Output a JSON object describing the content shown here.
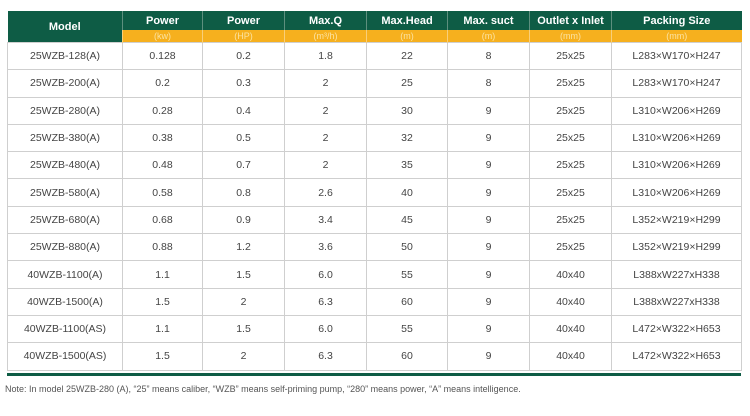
{
  "headers": [
    {
      "label": "Model",
      "unit": null
    },
    {
      "label": "Power",
      "unit": "(kw)"
    },
    {
      "label": "Power",
      "unit": "(HP)"
    },
    {
      "label": "Max.Q",
      "unit": "(m³/h)"
    },
    {
      "label": "Max.Head",
      "unit": "(m)"
    },
    {
      "label": "Max. suct",
      "unit": "(m)"
    },
    {
      "label": "Outlet x Inlet",
      "unit": "(mm)"
    },
    {
      "label": "Packing Size",
      "unit": "(mm)"
    }
  ],
  "rows": [
    [
      "25WZB-128(A)",
      "0.128",
      "0.2",
      "1.8",
      "22",
      "8",
      "25x25",
      "L283×W170×H247"
    ],
    [
      "25WZB-200(A)",
      "0.2",
      "0.3",
      "2",
      "25",
      "8",
      "25x25",
      "L283×W170×H247"
    ],
    [
      "25WZB-280(A)",
      "0.28",
      "0.4",
      "2",
      "30",
      "9",
      "25x25",
      "L310×W206×H269"
    ],
    [
      "25WZB-380(A)",
      "0.38",
      "0.5",
      "2",
      "32",
      "9",
      "25x25",
      "L310×W206×H269"
    ],
    [
      "25WZB-480(A)",
      "0.48",
      "0.7",
      "2",
      "35",
      "9",
      "25x25",
      "L310×W206×H269"
    ],
    [
      "25WZB-580(A)",
      "0.58",
      "0.8",
      "2.6",
      "40",
      "9",
      "25x25",
      "L310×W206×H269"
    ],
    [
      "25WZB-680(A)",
      "0.68",
      "0.9",
      "3.4",
      "45",
      "9",
      "25x25",
      "L352×W219×H299"
    ],
    [
      "25WZB-880(A)",
      "0.88",
      "1.2",
      "3.6",
      "50",
      "9",
      "25x25",
      "L352×W219×H299"
    ],
    [
      "40WZB-1100(A)",
      "1.1",
      "1.5",
      "6.0",
      "55",
      "9",
      "40x40",
      "L388xW227xH338"
    ],
    [
      "40WZB-1500(A)",
      "1.5",
      "2",
      "6.3",
      "60",
      "9",
      "40x40",
      "L388xW227xH338"
    ],
    [
      "40WZB-1100(AS)",
      "1.1",
      "1.5",
      "6.0",
      "55",
      "9",
      "40x40",
      "L472×W322×H653"
    ],
    [
      "40WZB-1500(AS)",
      "1.5",
      "2",
      "6.3",
      "60",
      "9",
      "40x40",
      "L472×W322×H653"
    ]
  ],
  "note": "Note: In model 25WZB-280 (A), “25” means caliber, “WZB” means self-priming pump, “280” means power, “A” means intelligence.",
  "colors": {
    "header": "#0e5c45",
    "unit_row": "#f6b01e"
  }
}
